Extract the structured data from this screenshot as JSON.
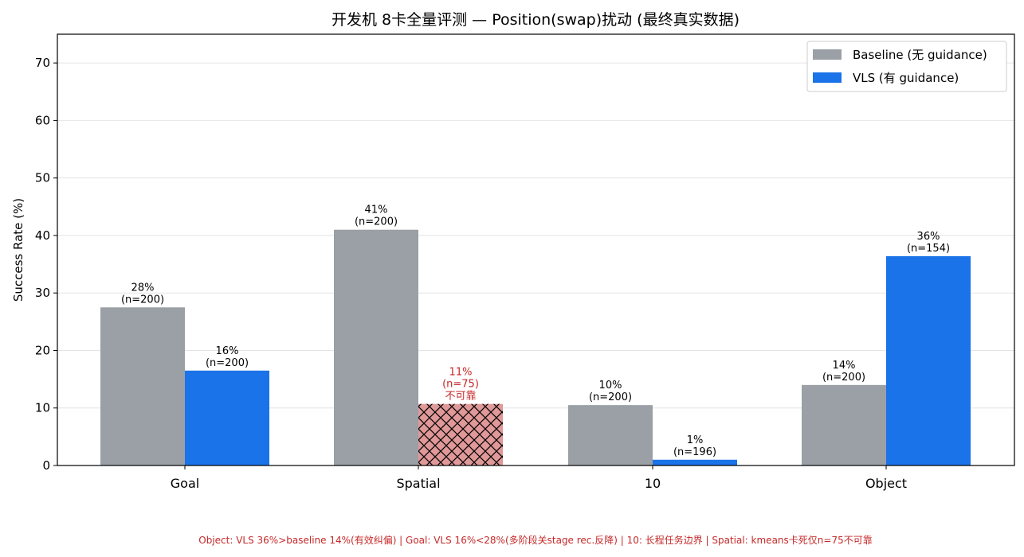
{
  "chart_data": {
    "type": "bar",
    "title": "开发机 8卡全量评测 — Position(swap)扰动 (最终真实数据)",
    "ylabel": "Success Rate (%)",
    "xlabel": "",
    "ylim": [
      0,
      75
    ],
    "yticks": [
      0,
      10,
      20,
      30,
      40,
      50,
      60,
      70
    ],
    "grid": true,
    "legend_position": "top-right",
    "categories": [
      "Goal",
      "Spatial",
      "10",
      "Object"
    ],
    "series": [
      {
        "name": "Baseline (无 guidance)",
        "color": "#9aa0a6",
        "values": [
          27.5,
          41,
          10.5,
          14
        ],
        "labels": [
          [
            "28%",
            "(n=200)"
          ],
          [
            "41%",
            "(n=200)"
          ],
          [
            "10%",
            "(n=200)"
          ],
          [
            "14%",
            "(n=200)"
          ]
        ]
      },
      {
        "name": "VLS (有 guidance)",
        "color": "#1a73e8",
        "values": [
          16.5,
          10.7,
          1,
          36.4
        ],
        "labels": [
          [
            "16%",
            "(n=200)"
          ],
          [
            "11%",
            "(n=75)",
            "不可靠"
          ],
          [
            "1%",
            "(n=196)"
          ],
          [
            "36%",
            "(n=154)"
          ]
        ],
        "unreliable_index": 1,
        "unreliable_color": "#e09898"
      }
    ],
    "footnote": "Object: VLS 36%>baseline 14%(有效纠偏) | Goal: VLS 16%<28%(多阶段关stage rec.反降) | 10: 长程任务边界 | Spatial: kmeans卡死仅n=75不可靠"
  }
}
